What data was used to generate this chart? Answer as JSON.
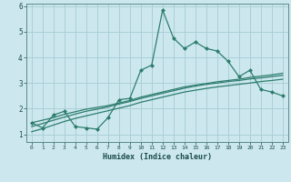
{
  "xlabel": "Humidex (Indice chaleur)",
  "ylabel": "",
  "xlim": [
    -0.5,
    23.5
  ],
  "ylim": [
    0.7,
    6.1
  ],
  "bg_color": "#cce8ee",
  "grid_color": "#aacfd8",
  "line_color": "#2e7d6e",
  "x_main": [
    0,
    1,
    2,
    3,
    4,
    5,
    6,
    7,
    8,
    9,
    10,
    11,
    12,
    13,
    14,
    15,
    16,
    17,
    18,
    19,
    20,
    21,
    22,
    23
  ],
  "y_main": [
    1.45,
    1.25,
    1.75,
    1.9,
    1.3,
    1.25,
    1.2,
    1.65,
    2.35,
    2.4,
    3.5,
    3.7,
    5.85,
    4.75,
    4.35,
    4.6,
    4.35,
    4.25,
    3.85,
    3.25,
    3.5,
    2.75,
    2.65,
    2.5
  ],
  "y_trend1": [
    1.45,
    1.55,
    1.65,
    1.78,
    1.88,
    1.98,
    2.05,
    2.12,
    2.22,
    2.32,
    2.45,
    2.55,
    2.65,
    2.75,
    2.85,
    2.92,
    2.98,
    3.05,
    3.1,
    3.15,
    3.22,
    3.27,
    3.32,
    3.38
  ],
  "y_trend2": [
    1.3,
    1.42,
    1.55,
    1.67,
    1.79,
    1.9,
    1.98,
    2.07,
    2.18,
    2.28,
    2.4,
    2.5,
    2.6,
    2.7,
    2.8,
    2.88,
    2.95,
    3.0,
    3.06,
    3.1,
    3.16,
    3.2,
    3.25,
    3.3
  ],
  "y_trend3": [
    1.1,
    1.22,
    1.36,
    1.5,
    1.62,
    1.72,
    1.82,
    1.92,
    2.02,
    2.12,
    2.25,
    2.35,
    2.45,
    2.55,
    2.65,
    2.72,
    2.79,
    2.85,
    2.9,
    2.95,
    3.0,
    3.06,
    3.1,
    3.15
  ],
  "yticks": [
    1,
    2,
    3,
    4,
    5,
    6
  ],
  "xticks": [
    0,
    1,
    2,
    3,
    4,
    5,
    6,
    7,
    8,
    9,
    10,
    11,
    12,
    13,
    14,
    15,
    16,
    17,
    18,
    19,
    20,
    21,
    22,
    23
  ]
}
